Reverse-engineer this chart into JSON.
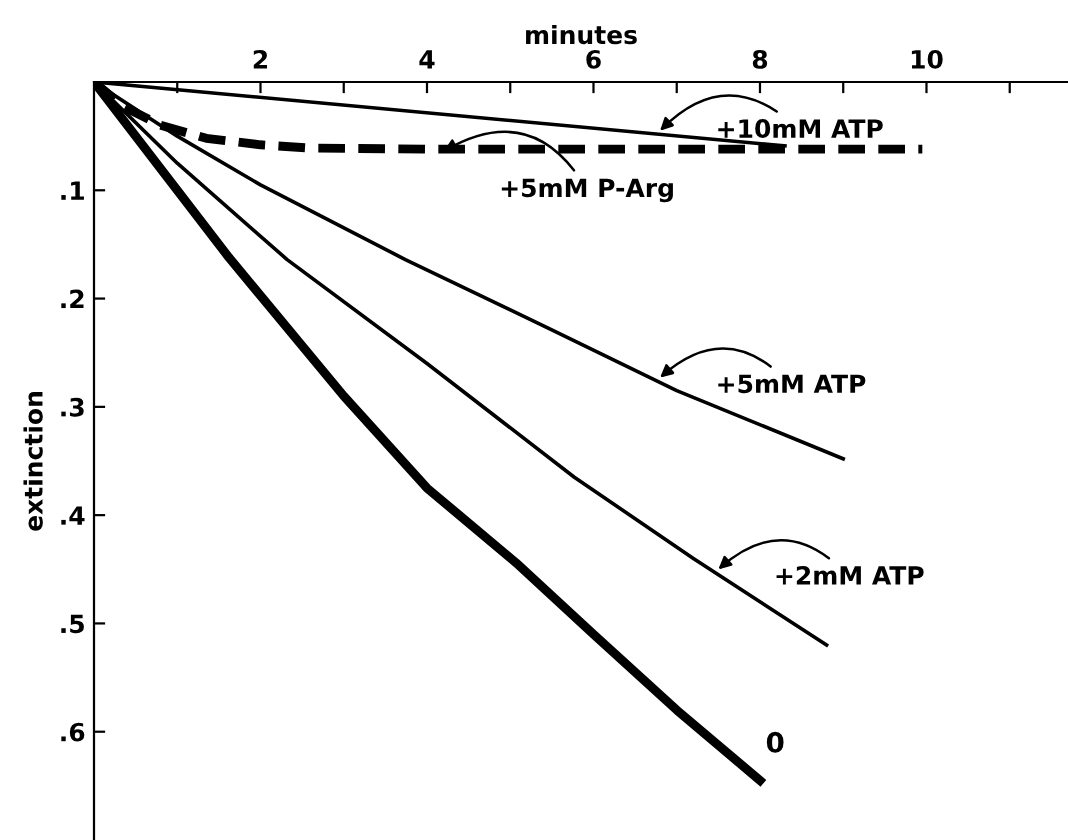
{
  "chart_data": {
    "type": "line",
    "xlabel": "minutes",
    "ylabel": "extinction",
    "xlim": [
      0,
      11.7
    ],
    "ylim": [
      0.7,
      0
    ],
    "xticks": [
      {
        "value": 1,
        "label": null
      },
      2,
      {
        "value": 3,
        "label": null
      },
      4,
      {
        "value": 5,
        "label": null
      },
      6,
      {
        "value": 7,
        "label": null
      },
      8,
      {
        "value": 9,
        "label": null
      },
      10,
      {
        "value": 11,
        "label": null
      }
    ],
    "yticks": [
      {
        "value": 0.1,
        "label": ".1"
      },
      {
        "value": 0.2,
        "label": ".2"
      },
      {
        "value": 0.3,
        "label": ".3"
      },
      {
        "value": 0.4,
        "label": ".4"
      },
      {
        "value": 0.5,
        "label": ".5"
      },
      {
        "value": 0.6,
        "label": ".6"
      }
    ],
    "grid": false,
    "legend": false,
    "marker": "none",
    "series": [
      {
        "name": "0",
        "color": "#000000",
        "x": [
          0,
          1,
          1.62,
          3,
          4,
          5.07,
          6,
          7,
          8
        ],
        "values": [
          0,
          0.1,
          0.162,
          0.29,
          0.375,
          0.444,
          0.51,
          0.58,
          0.645
        ]
      },
      {
        "color": "#000000",
        "x": [
          0,
          1,
          2.32,
          4,
          5.77,
          7.2,
          8.8
        ],
        "values": [
          0,
          0.075,
          0.164,
          0.26,
          0.365,
          0.44,
          0.52
        ]
      },
      {
        "color": "#000000",
        "x": [
          0,
          1,
          2,
          3.74,
          5.53,
          7,
          9
        ],
        "values": [
          0,
          0.05,
          0.095,
          0.164,
          0.23,
          0.285,
          0.348
        ]
      },
      {
        "color": "#000000",
        "x": [
          0,
          8.3
        ],
        "values": [
          0,
          0.059
        ]
      },
      {
        "color": "#000000",
        "line_style": "dashed",
        "x": [
          0,
          0.36,
          0.8,
          1.35,
          2,
          2.6,
          4,
          9.95
        ],
        "values": [
          0,
          0.023,
          0.04,
          0.052,
          0.058,
          0.061,
          0.062,
          0.062
        ]
      }
    ],
    "annotations": [
      {
        "text": "+10mM ATP",
        "x": 6.8,
        "y": 0.045
      },
      {
        "text": "+5mM P-Arg",
        "x": 4.2,
        "y": 0.064
      },
      {
        "text": "+5mM ATP",
        "x": 6.8,
        "y": 0.273
      },
      {
        "text": "+2mM ATP",
        "x": 7.5,
        "y": 0.45
      }
    ]
  }
}
